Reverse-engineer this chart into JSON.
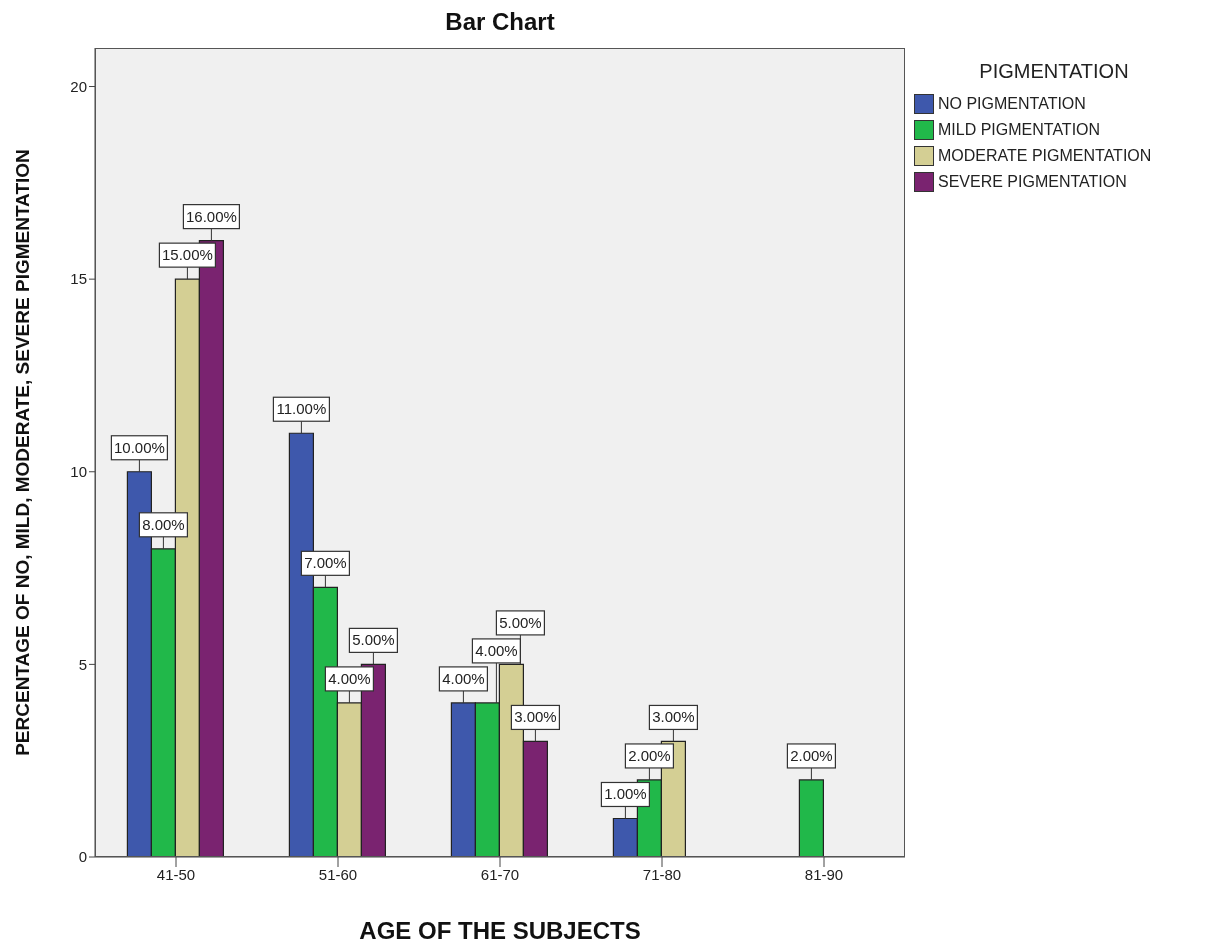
{
  "chart_data": {
    "type": "bar",
    "title": "Bar Chart",
    "xlabel": "AGE OF THE SUBJECTS",
    "ylabel": "PERCENTAGE OF NO, MILD, MODERATE, SEVERE PIGMENTATION",
    "legend_title": "PIGMENTATION",
    "legend": "top right",
    "categories": [
      "41-50",
      "51-60",
      "61-70",
      "71-80",
      "81-90"
    ],
    "series": [
      {
        "name": "NO PIGMENTATION",
        "color": "#3e58ac",
        "values": [
          10,
          11,
          4,
          1,
          null
        ],
        "value_labels": [
          "10.00%",
          "11.00%",
          "4.00%",
          "1.00%",
          null
        ]
      },
      {
        "name": "MILD PIGMENTATION",
        "color": "#21b84a",
        "values": [
          8,
          7,
          4,
          2,
          2
        ],
        "value_labels": [
          "8.00%",
          "7.00%",
          "4.00%",
          "2.00%",
          "2.00%"
        ]
      },
      {
        "name": "MODERATE PIGMENTATION",
        "color": "#d4cf94",
        "values": [
          15,
          4,
          5,
          3,
          null
        ],
        "value_labels": [
          "15.00%",
          "4.00%",
          "5.00%",
          "3.00%",
          null
        ]
      },
      {
        "name": "SEVERE PIGMENTATION",
        "color": "#7a2370",
        "values": [
          16,
          5,
          3,
          null,
          null
        ],
        "value_labels": [
          "16.00%",
          "5.00%",
          "3.00%",
          null,
          null
        ]
      }
    ],
    "ylim": [
      0,
      21
    ],
    "yticks": [
      0,
      5,
      10,
      15,
      20
    ],
    "grid": false
  }
}
